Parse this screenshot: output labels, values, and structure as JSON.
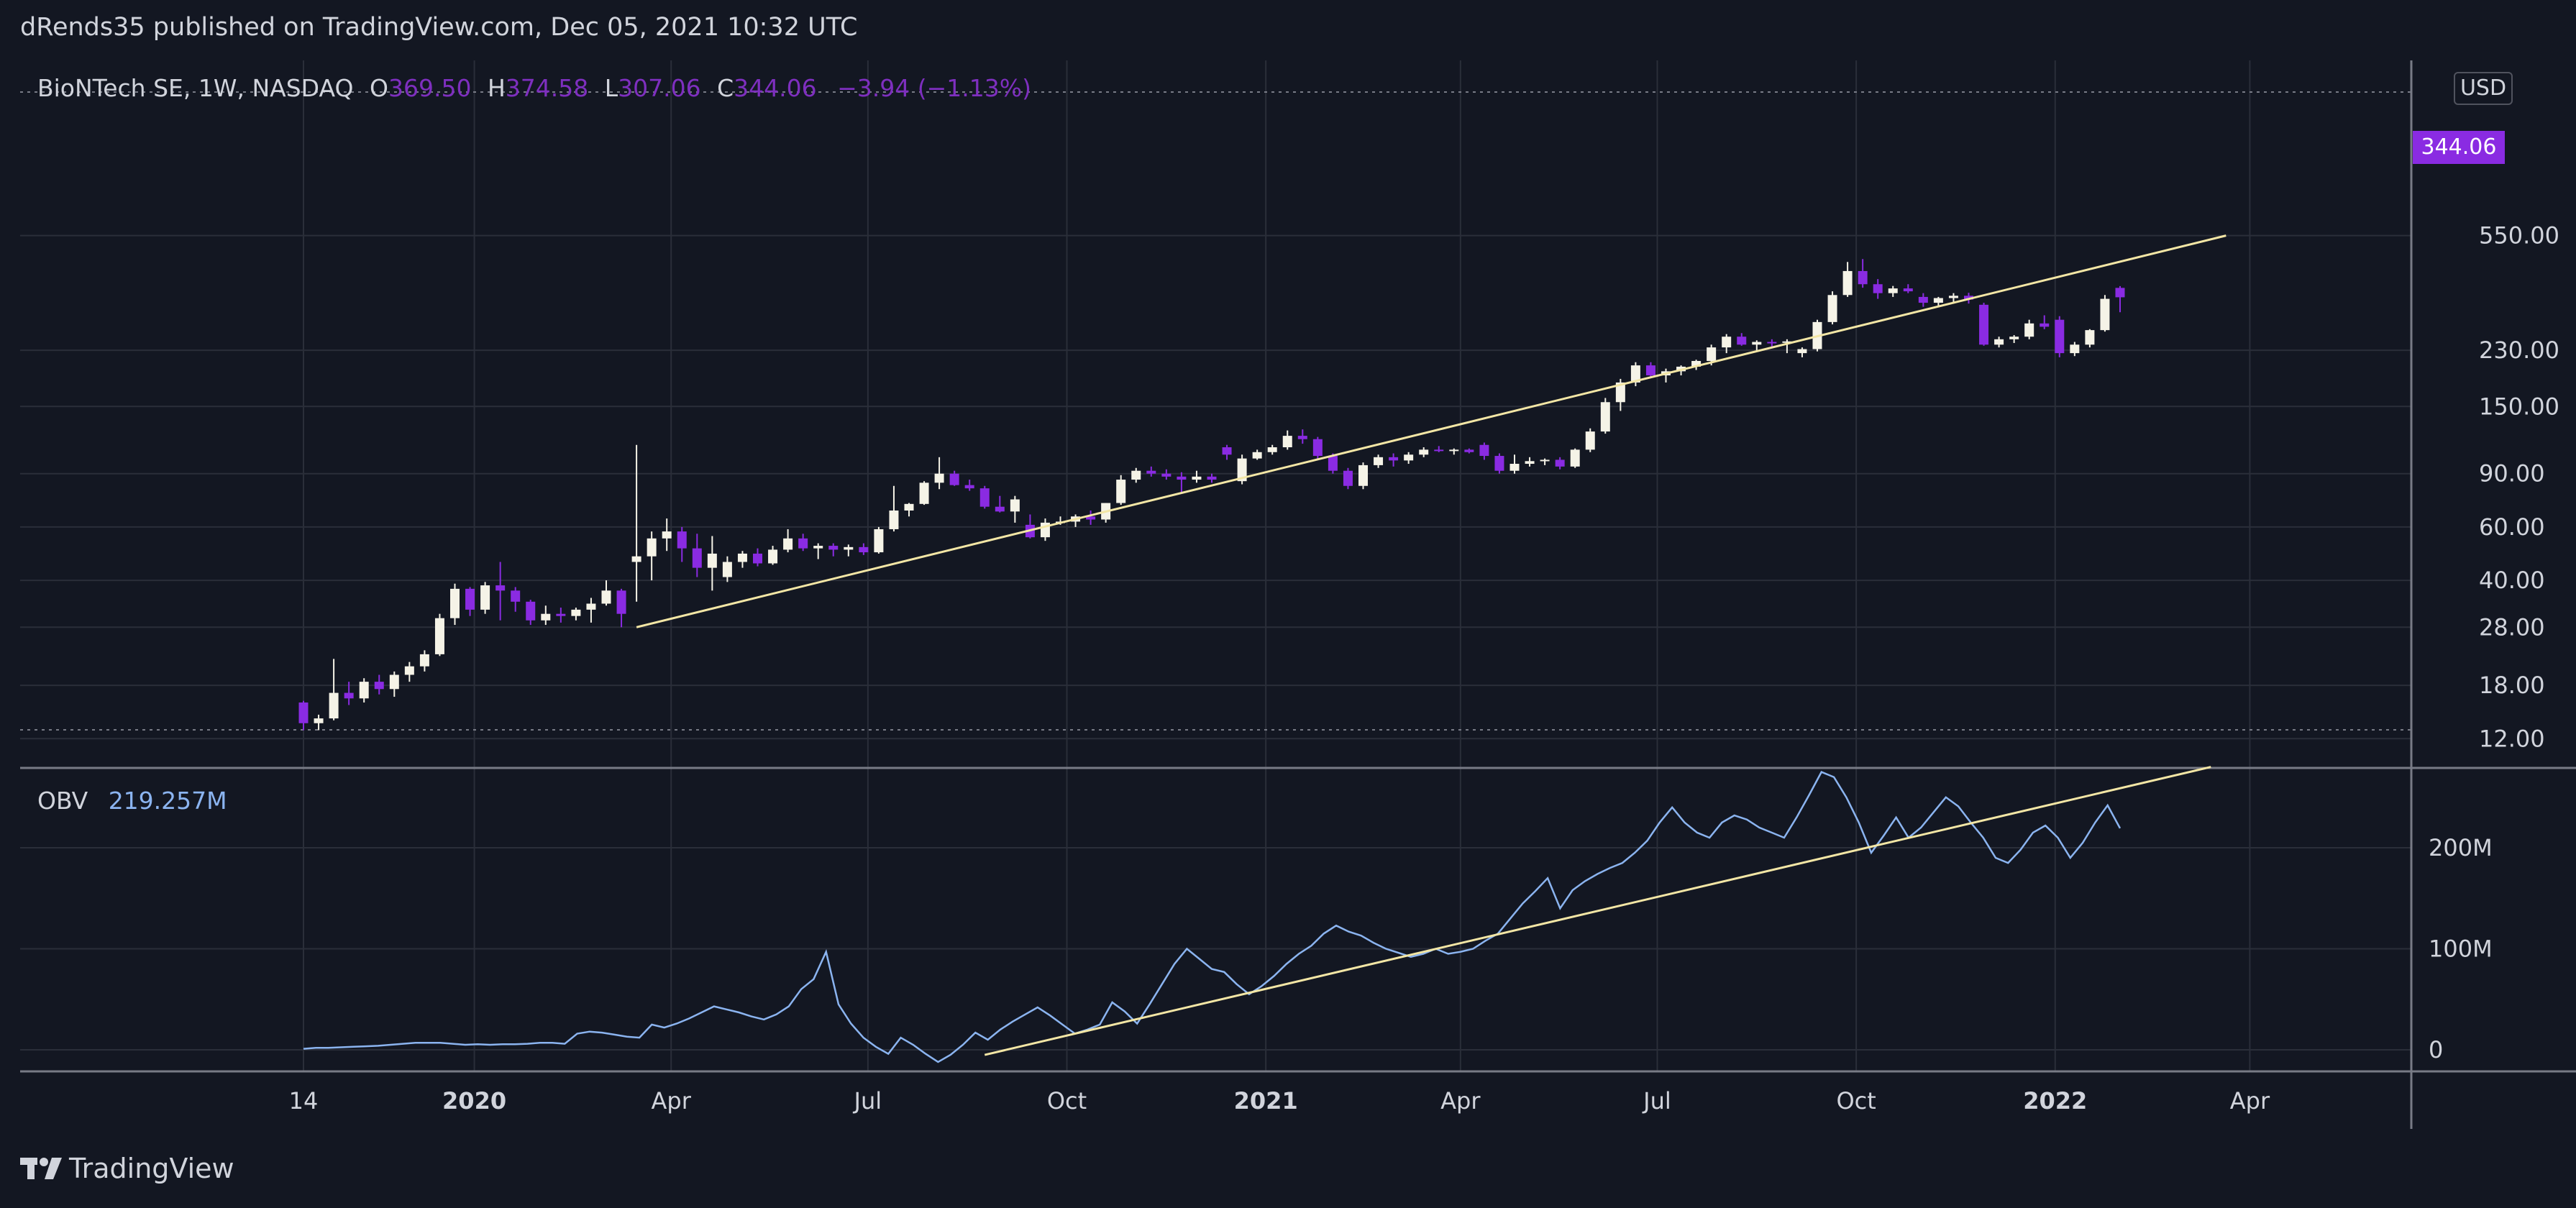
{
  "header": {
    "text": "dRends35 published on TradingView.com, Dec 05, 2021 10:32 UTC"
  },
  "legend": {
    "symbol": "BioNTech SE, 1W, NASDAQ",
    "o_label": "O",
    "o_value": "369.50",
    "h_label": "H",
    "h_value": "374.58",
    "l_label": "L",
    "l_value": "307.06",
    "c_label": "C",
    "c_value": "344.06",
    "change": "−3.94 (−1.13%)"
  },
  "obv_legend": {
    "name": "OBV",
    "value": "219.257M"
  },
  "currency_badge": "USD",
  "last_price_tag": "344.06",
  "brand": {
    "name": "TradingView"
  },
  "colors": {
    "background": "#131722",
    "up_candle": "#f5f3e7",
    "down_candle": "#8a2be2",
    "trendline": "#f3e6a5",
    "obv_line": "#8bb4f0",
    "grid": "#2a2e39"
  },
  "chart_data": [
    {
      "type": "candlestick",
      "symbol": "BioNTech SE",
      "interval": "1W",
      "exchange": "NASDAQ",
      "y_scale": "log",
      "y_ticks": [
        "550.00",
        "230.00",
        "150.00",
        "90.00",
        "60.00",
        "40.00",
        "28.00",
        "18.00",
        "12.00"
      ],
      "x_ticks": [
        "14",
        "2020",
        "Apr",
        "Jul",
        "Oct",
        "2021",
        "Apr",
        "Jul",
        "Oct",
        "2022",
        "Apr"
      ],
      "ohlc": [
        [
          15.8,
          16.0,
          12.8,
          13.5
        ],
        [
          13.5,
          14.4,
          12.8,
          14.0
        ],
        [
          14.0,
          22.0,
          13.8,
          17.0
        ],
        [
          17.0,
          18.5,
          15.5,
          16.3
        ],
        [
          16.3,
          19.0,
          15.8,
          18.5
        ],
        [
          18.5,
          19.5,
          16.8,
          17.5
        ],
        [
          17.5,
          20.0,
          16.5,
          19.5
        ],
        [
          19.5,
          21.5,
          18.5,
          20.8
        ],
        [
          20.8,
          23.5,
          20.0,
          22.8
        ],
        [
          22.8,
          31.0,
          22.5,
          30.0
        ],
        [
          30.0,
          39.0,
          28.5,
          37.5
        ],
        [
          37.5,
          38.0,
          30.5,
          32.0
        ],
        [
          32.0,
          39.5,
          31.0,
          38.5
        ],
        [
          38.5,
          46.0,
          29.5,
          37.0
        ],
        [
          37.0,
          38.0,
          31.5,
          34.0
        ],
        [
          34.0,
          34.5,
          28.5,
          29.5
        ],
        [
          29.5,
          33.0,
          28.5,
          31.0
        ],
        [
          31.0,
          32.5,
          29.0,
          30.5
        ],
        [
          30.5,
          32.5,
          29.5,
          32.0
        ],
        [
          32.0,
          35.0,
          29.0,
          33.5
        ],
        [
          33.5,
          40.0,
          33.0,
          37.0
        ],
        [
          37.0,
          37.5,
          28.0,
          31.0
        ],
        [
          46.0,
          112.0,
          34.0,
          48.0
        ],
        [
          48.0,
          58.0,
          40.0,
          55.0
        ],
        [
          55.0,
          64.0,
          50.0,
          58.0
        ],
        [
          58.0,
          60.0,
          46.0,
          51.0
        ],
        [
          51.0,
          57.0,
          41.0,
          44.0
        ],
        [
          44.0,
          56.0,
          37.0,
          49.0
        ],
        [
          41.0,
          48.0,
          39.5,
          46.0
        ],
        [
          46.0,
          50.0,
          44.0,
          49.0
        ],
        [
          49.0,
          51.0,
          44.5,
          45.5
        ],
        [
          45.5,
          52.0,
          45.0,
          50.5
        ],
        [
          50.5,
          59.0,
          49.5,
          55.0
        ],
        [
          55.0,
          57.0,
          50.0,
          51.0
        ],
        [
          51.0,
          53.0,
          47.0,
          52.0
        ],
        [
          52.0,
          53.0,
          48.0,
          50.5
        ],
        [
          50.5,
          52.5,
          48.0,
          51.5
        ],
        [
          51.5,
          53.0,
          48.5,
          49.5
        ],
        [
          49.5,
          60.0,
          49.0,
          59.0
        ],
        [
          59.0,
          82.0,
          58.0,
          68.0
        ],
        [
          68.0,
          72.0,
          65.0,
          71.5
        ],
        [
          71.5,
          85.0,
          71.0,
          84.0
        ],
        [
          84.0,
          102.0,
          80.0,
          90.0
        ],
        [
          90.0,
          92.0,
          82.0,
          82.5
        ],
        [
          82.5,
          86.0,
          79.0,
          80.5
        ],
        [
          80.5,
          82.0,
          69.0,
          70.0
        ],
        [
          70.0,
          76.0,
          67.0,
          67.5
        ],
        [
          67.5,
          76.0,
          62.0,
          74.0
        ],
        [
          61.0,
          66.0,
          55.0,
          55.5
        ],
        [
          55.5,
          64.0,
          54.0,
          62.0
        ],
        [
          62.0,
          65.0,
          61.0,
          62.5
        ],
        [
          62.5,
          66.0,
          60.0,
          65.0
        ],
        [
          65.0,
          68.0,
          61.0,
          63.5
        ],
        [
          63.5,
          72.0,
          62.0,
          72.0
        ],
        [
          72.0,
          89.0,
          71.0,
          86.0
        ],
        [
          86.0,
          94.0,
          84.0,
          92.0
        ],
        [
          92.0,
          95.0,
          88.0,
          90.0
        ],
        [
          90.0,
          93.0,
          86.0,
          88.0
        ],
        [
          88.0,
          91.0,
          78.0,
          86.0
        ],
        [
          86.0,
          92.0,
          84.0,
          88.0
        ],
        [
          88.0,
          90.0,
          84.0,
          86.0
        ],
        [
          110.0,
          112.0,
          100.0,
          104.0
        ],
        [
          85.0,
          104.0,
          83.0,
          101.0
        ],
        [
          101.0,
          108.0,
          100.0,
          106.0
        ],
        [
          106.0,
          112.0,
          104.0,
          110.0
        ],
        [
          110.0,
          125.0,
          108.0,
          120.0
        ],
        [
          120.0,
          126.0,
          113.0,
          117.0
        ],
        [
          117.0,
          119.0,
          100.0,
          103.0
        ],
        [
          103.0,
          105.0,
          90.0,
          92.0
        ],
        [
          92.0,
          94.0,
          80.0,
          82.0
        ],
        [
          82.0,
          98.0,
          80.0,
          96.0
        ],
        [
          96.0,
          104.0,
          94.0,
          102.0
        ],
        [
          102.0,
          105.0,
          95.0,
          99.5
        ],
        [
          99.5,
          106.0,
          97.0,
          104.0
        ],
        [
          104.0,
          110.0,
          102.0,
          108.0
        ],
        [
          108.0,
          111.0,
          106.0,
          107.0
        ],
        [
          107.0,
          109.0,
          104.0,
          108.0
        ],
        [
          108.0,
          109.0,
          105.0,
          106.0
        ],
        [
          112.0,
          114.0,
          100.0,
          103.0
        ],
        [
          103.0,
          105.0,
          90.0,
          92.0
        ],
        [
          92.0,
          104.0,
          90.0,
          97.0
        ],
        [
          97.0,
          102.0,
          95.0,
          99.0
        ],
        [
          99.0,
          101.0,
          96.0,
          100.0
        ],
        [
          100.0,
          102.0,
          93.0,
          95.0
        ],
        [
          95.0,
          109.0,
          94.0,
          108.0
        ],
        [
          108.0,
          127.0,
          106.0,
          124.0
        ],
        [
          124.0,
          160.0,
          122.0,
          155.0
        ],
        [
          155.0,
          185.0,
          145.0,
          180.0
        ],
        [
          180.0,
          210.0,
          175.0,
          205.0
        ],
        [
          205.0,
          210.0,
          188.0,
          190.0
        ],
        [
          190.0,
          200.0,
          180.0,
          196.0
        ],
        [
          196.0,
          205.0,
          190.0,
          203.0
        ],
        [
          203.0,
          214.0,
          198.0,
          212.0
        ],
        [
          212.0,
          240.0,
          205.0,
          235.0
        ],
        [
          235.0,
          260.0,
          225.0,
          255.0
        ],
        [
          255.0,
          262.0,
          238.0,
          240.0
        ],
        [
          240.0,
          248.0,
          230.0,
          245.0
        ],
        [
          245.0,
          250.0,
          235.0,
          244.0
        ],
        [
          244.0,
          250.0,
          225.0,
          246.0
        ],
        [
          225.0,
          235.0,
          218.0,
          232.0
        ],
        [
          232.0,
          290.0,
          228.0,
          285.0
        ],
        [
          285.0,
          360.0,
          280.0,
          350.0
        ],
        [
          350.0,
          450.0,
          345.0,
          420.0
        ],
        [
          420.0,
          460.0,
          370.0,
          380.0
        ],
        [
          380.0,
          395.0,
          340.0,
          355.0
        ],
        [
          355.0,
          375.0,
          345.0,
          368.0
        ],
        [
          368.0,
          380.0,
          355.0,
          360.0
        ],
        [
          345.0,
          355.0,
          320.0,
          330.0
        ],
        [
          330.0,
          345.0,
          320.0,
          342.0
        ],
        [
          342.0,
          355.0,
          330.0,
          348.0
        ],
        [
          348.0,
          356.0,
          328.0,
          338.0
        ],
        [
          325.0,
          330.0,
          238.0,
          240.0
        ],
        [
          240.0,
          255.0,
          235.0,
          250.0
        ],
        [
          250.0,
          258.0,
          243.0,
          255.0
        ],
        [
          255.0,
          290.0,
          250.0,
          282.0
        ],
        [
          282.0,
          300.0,
          270.0,
          275.0
        ],
        [
          290.0,
          298.0,
          218.0,
          225.0
        ],
        [
          225.0,
          245.0,
          220.0,
          240.0
        ],
        [
          240.0,
          270.0,
          235.0,
          268.0
        ],
        [
          268.0,
          350.0,
          265.0,
          340.0
        ],
        [
          369.5,
          374.58,
          307.06,
          344.06
        ]
      ],
      "trendline": {
        "from": {
          "date": "2020-03-16",
          "price": 28.0
        },
        "to": {
          "date": "2022-03-21",
          "price": 550.0
        }
      }
    },
    {
      "type": "line",
      "name": "OBV",
      "y_ticks": [
        "200M",
        "100M",
        "0"
      ],
      "values": [
        1,
        2,
        2,
        2.5,
        3,
        3.5,
        4,
        5,
        6,
        7,
        7,
        7,
        6,
        5,
        5.5,
        5,
        5.5,
        5.5,
        6,
        7,
        7,
        6,
        16,
        18,
        17,
        15,
        13,
        12,
        25,
        22,
        26,
        31,
        37,
        43,
        40,
        37,
        33,
        30,
        35,
        43,
        60,
        70,
        97,
        45,
        26,
        12,
        3,
        -4,
        12,
        5,
        -4,
        -12,
        -5,
        5,
        17,
        10,
        20,
        28,
        35,
        42,
        34,
        25,
        16,
        20,
        25,
        47,
        38,
        26,
        45,
        65,
        85,
        100,
        90,
        80,
        77,
        65,
        55,
        63,
        73,
        85,
        95,
        103,
        115,
        123,
        117,
        113,
        106,
        100,
        96,
        92,
        95,
        100,
        95,
        97,
        100,
        108,
        115,
        130,
        145,
        157,
        170,
        140,
        158,
        167,
        174,
        180,
        185,
        195,
        207,
        225,
        240,
        225,
        215,
        210,
        225,
        232,
        228,
        220,
        215,
        210,
        230,
        252,
        275,
        270,
        250,
        225,
        195,
        212,
        230,
        210,
        220,
        235,
        250,
        241,
        225,
        210,
        190,
        185,
        198,
        215,
        222,
        210,
        190,
        205,
        225,
        242,
        219.257
      ],
      "trendline": {
        "from": {
          "date": "2020-08-24",
          "value": -5
        },
        "to": {
          "date": "2022-03-14",
          "value": 280
        }
      }
    }
  ]
}
